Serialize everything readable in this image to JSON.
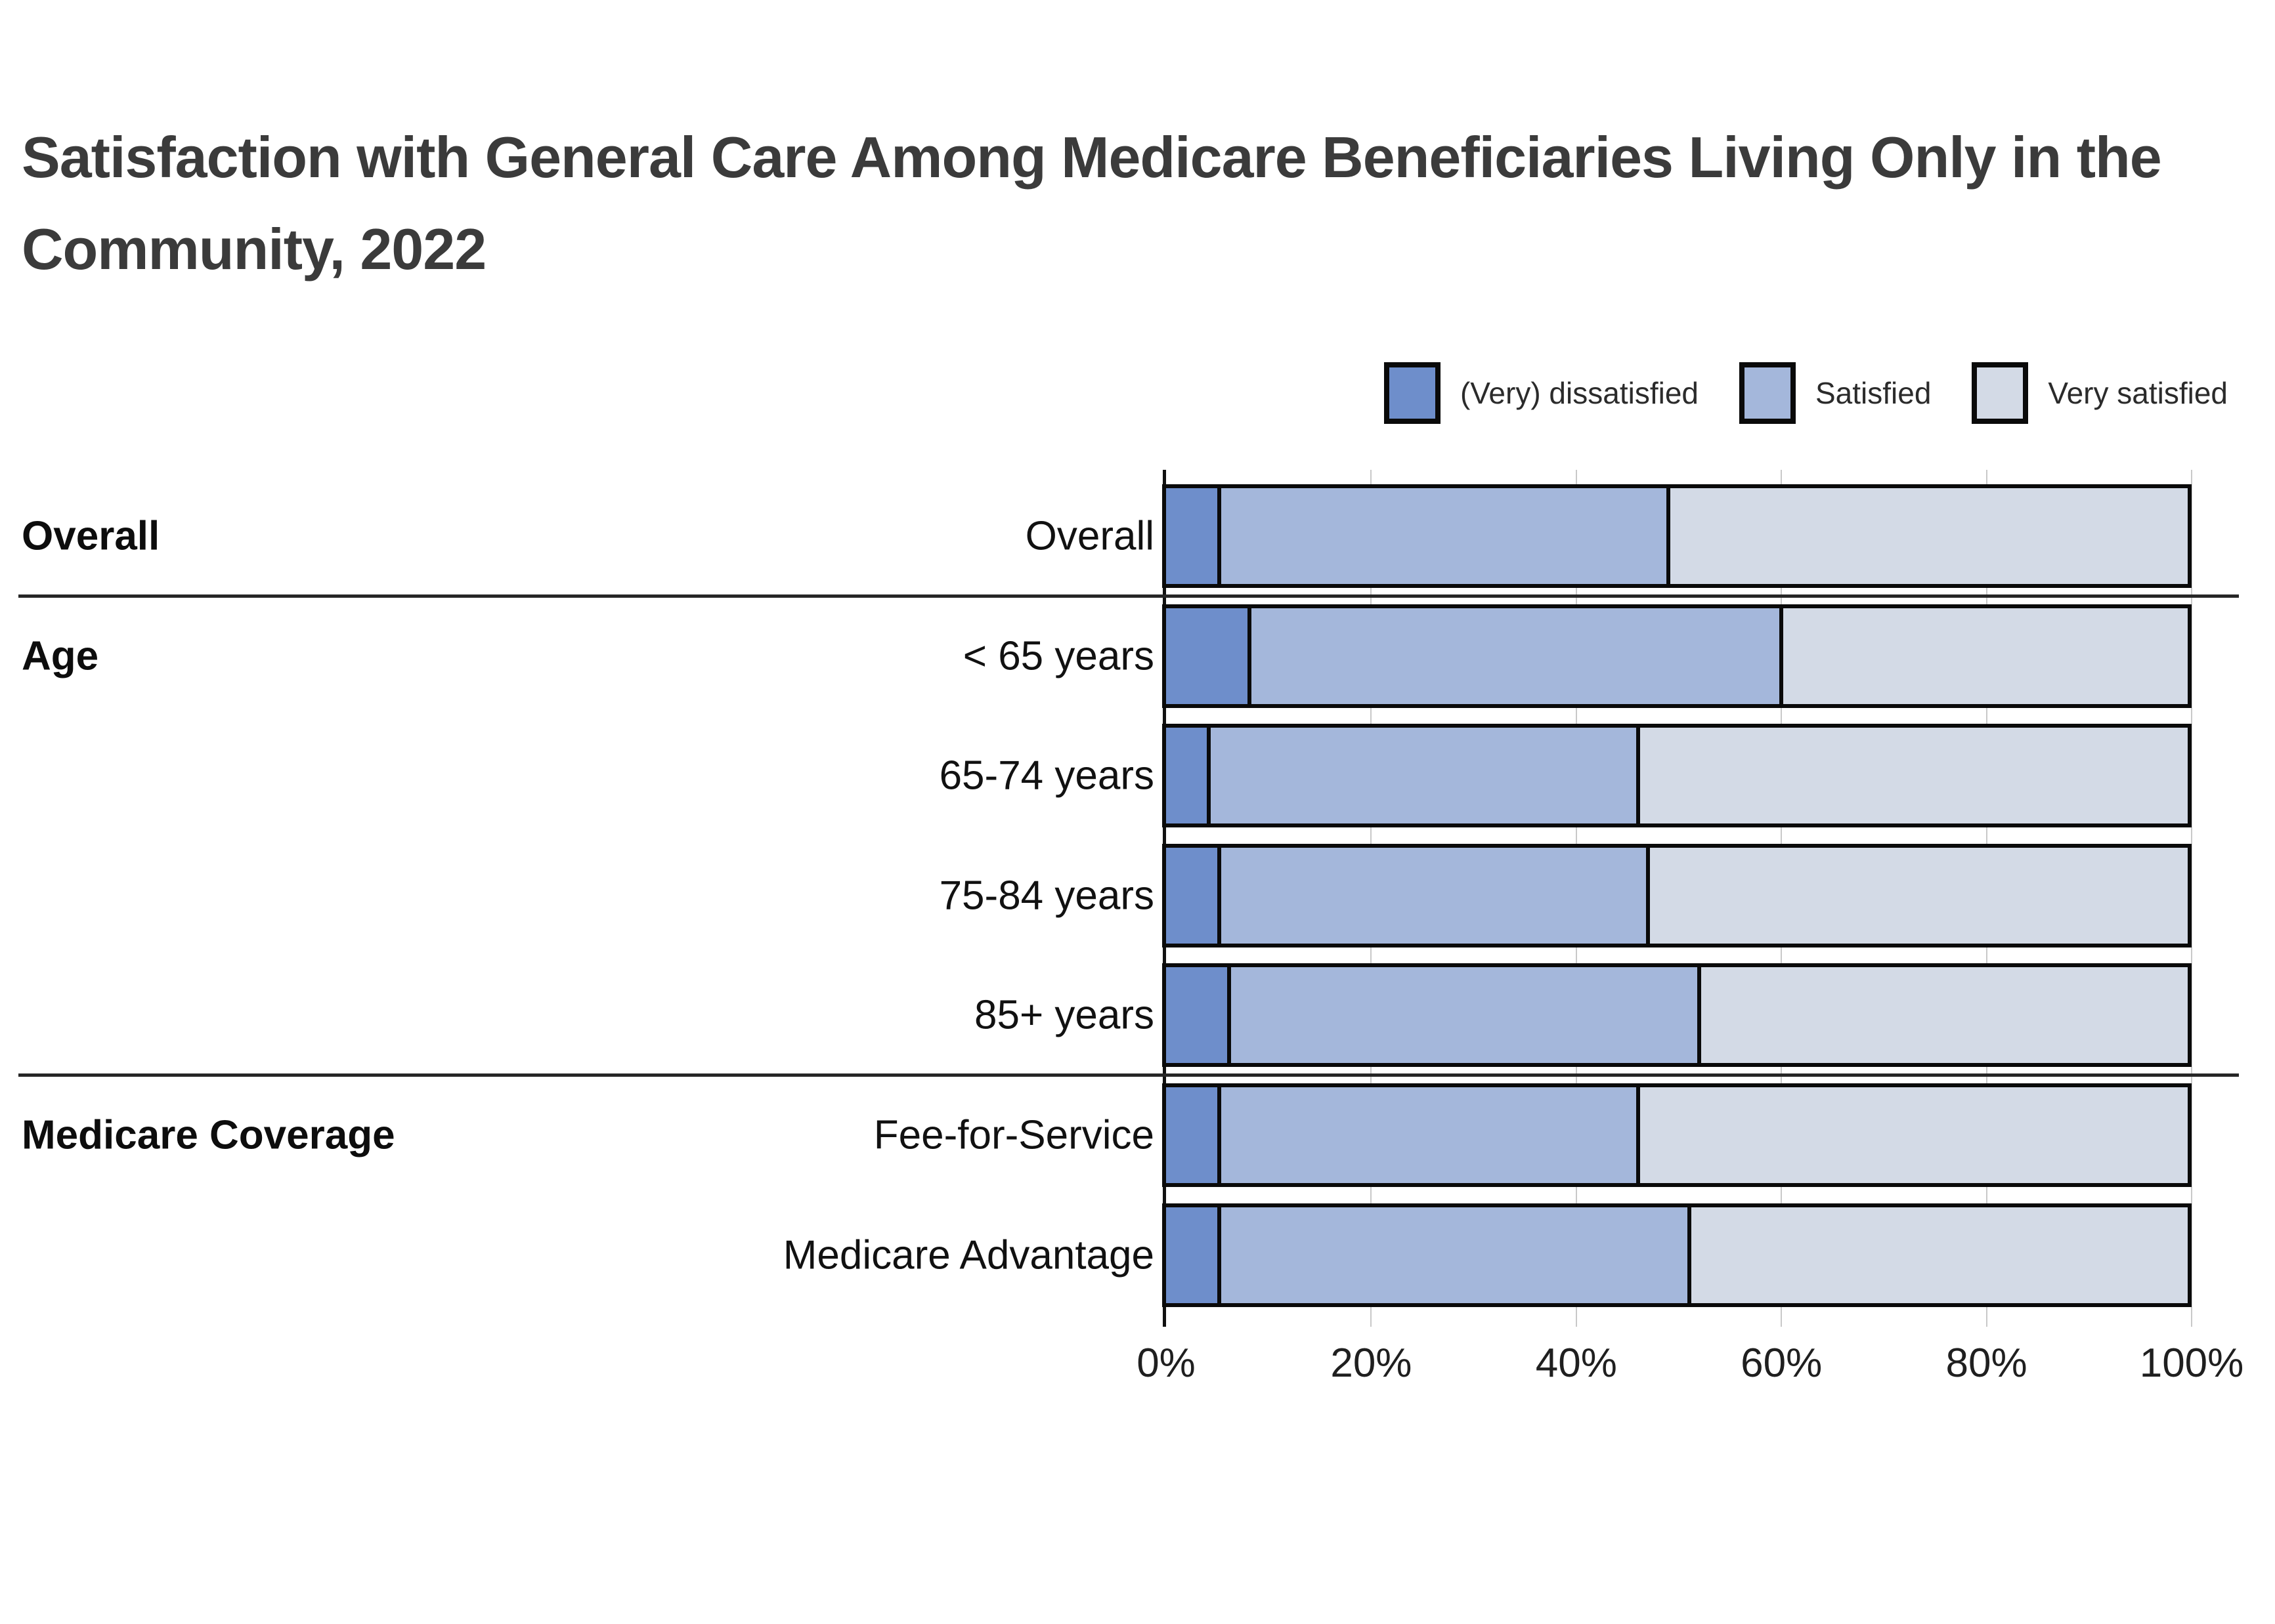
{
  "title": {
    "line1": "Satisfaction with General Care Among Medicare Beneficiaries Living Only in the",
    "line2": "Community, 2022"
  },
  "legend": {
    "items": [
      {
        "label": "(Very) dissatisfied",
        "color": "#6E8ECB"
      },
      {
        "label": "Satisfied",
        "color": "#A4B7DB"
      },
      {
        "label": "Very satisfied",
        "color": "#D3DAE6"
      }
    ]
  },
  "chart_data": {
    "type": "bar",
    "stacked": true,
    "orientation": "horizontal",
    "title": "Satisfaction with General Care Among Medicare Beneficiaries Living Only in the Community, 2022",
    "categories": [
      "Overall",
      "< 65 years",
      "65-74 years",
      "75-84 years",
      "85+ years",
      "Fee-for-Service",
      "Medicare Advantage"
    ],
    "groups": [
      {
        "name": "Overall",
        "start": 0,
        "count": 1
      },
      {
        "name": "Age",
        "start": 1,
        "count": 4
      },
      {
        "name": "Medicare Coverage",
        "start": 5,
        "count": 2
      }
    ],
    "series": [
      {
        "name": "(Very) dissatisfied",
        "color": "#6E8ECB",
        "values": [
          5,
          8,
          4,
          5,
          6,
          5,
          5
        ]
      },
      {
        "name": "Satisfied",
        "color": "#A4B7DB",
        "values": [
          44,
          52,
          42,
          42,
          46,
          41,
          46
        ]
      },
      {
        "name": "Very satisfied",
        "color": "#D3DAE6",
        "values": [
          51,
          40,
          54,
          53,
          48,
          54,
          49
        ]
      }
    ],
    "xlim": [
      0,
      100
    ],
    "x_ticks": [
      {
        "value": 0,
        "label": "0%"
      },
      {
        "value": 20,
        "label": "20%"
      },
      {
        "value": 40,
        "label": "40%"
      },
      {
        "value": 60,
        "label": "60%"
      },
      {
        "value": 80,
        "label": "80%"
      },
      {
        "value": 100,
        "label": "100%"
      }
    ],
    "grid": true,
    "legend_position": "top-right"
  }
}
